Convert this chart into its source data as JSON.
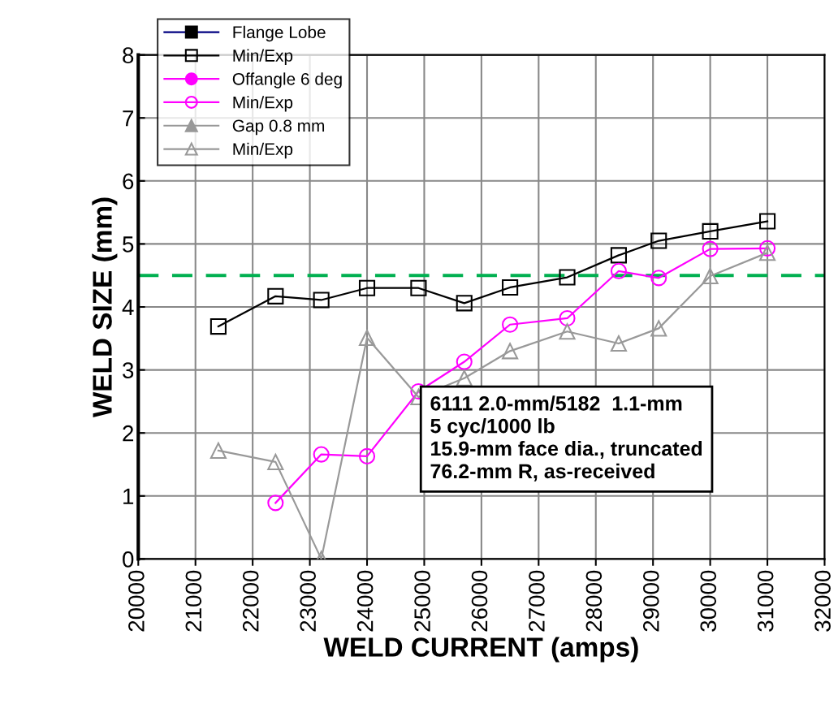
{
  "chart_data": {
    "type": "line",
    "xlabel": "WELD CURRENT (amps)",
    "ylabel": "WELD SIZE (mm)",
    "xlim": [
      20000,
      32000
    ],
    "xticks": [
      20000,
      21000,
      22000,
      23000,
      24000,
      25000,
      26000,
      27000,
      28000,
      29000,
      30000,
      31000,
      32000
    ],
    "ylim": [
      0,
      8
    ],
    "yticks": [
      0,
      1,
      2,
      3,
      4,
      5,
      6,
      7,
      8
    ],
    "grid": true,
    "legend": "top left",
    "line_style": "solid",
    "series": [
      {
        "name": "Flange Lobe",
        "color": "#000080",
        "marker": "square"
      },
      {
        "name": "Min/Exp",
        "color": "#000000",
        "marker": "square",
        "x": [
          21400,
          22400,
          23200,
          24000,
          24900,
          25700,
          26500,
          27500,
          28400,
          29100,
          30000,
          31000
        ],
        "values": [
          3.69,
          4.17,
          4.11,
          4.3,
          4.3,
          4.06,
          4.31,
          4.47,
          4.82,
          5.05,
          5.2,
          5.36
        ]
      },
      {
        "name": "Offangle 6 deg",
        "color": "#ff00ff",
        "marker": "circle"
      },
      {
        "name": "Min/Exp",
        "color": "#ff00ff",
        "marker": "circle",
        "x": [
          22400,
          23200,
          24000,
          24900,
          25700,
          26500,
          27500,
          28400,
          29100,
          30000,
          31000
        ],
        "values": [
          0.89,
          1.66,
          1.63,
          2.66,
          3.13,
          3.72,
          3.82,
          4.57,
          4.46,
          4.92,
          4.93
        ]
      },
      {
        "name": "Gap 0.8 mm",
        "color": "#999999",
        "marker": "triangle"
      },
      {
        "name": "Min/Exp",
        "color": "#999999",
        "marker": "triangle",
        "x": [
          21400,
          22400,
          23200,
          24000,
          24900,
          25700,
          26500,
          27500,
          28400,
          29100,
          30000,
          31000
        ],
        "values": [
          1.72,
          1.54,
          0,
          3.51,
          2.57,
          2.87,
          3.3,
          3.61,
          3.42,
          3.66,
          4.49,
          4.86
        ]
      }
    ],
    "ref_lines": [
      {
        "axis": "y",
        "value": 4.5,
        "label": null,
        "color": "#00b050",
        "line_style": "dashed"
      }
    ],
    "annotations": [
      "6111 2.0-mm/5182  1.1-mm\n5 cyc/1000 lb\n15.9-mm face dia., truncated\n76.2-mm R, as-received"
    ]
  }
}
